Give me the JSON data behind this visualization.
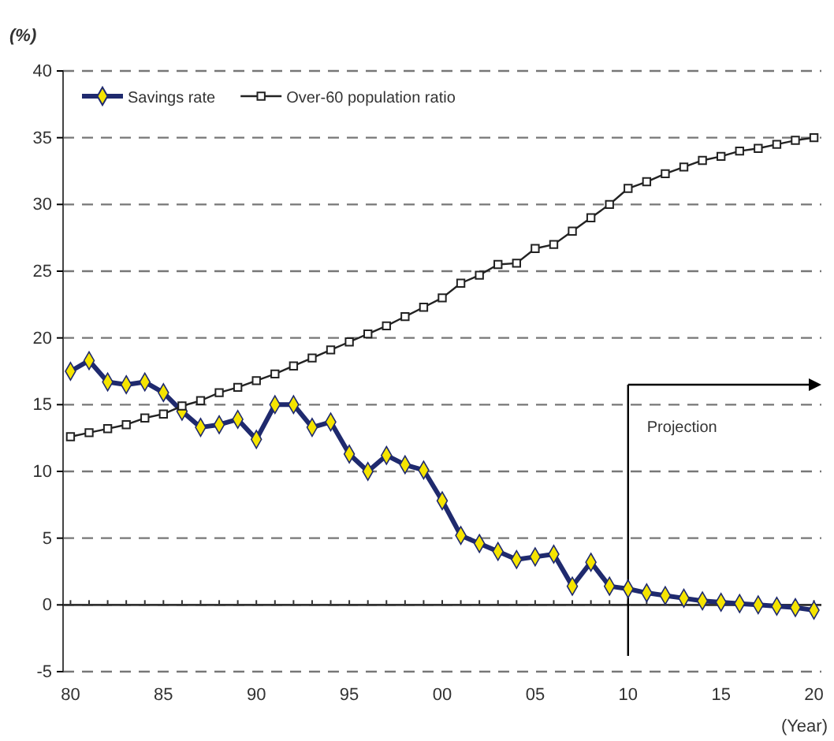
{
  "chart_data": {
    "type": "line",
    "ylabel": "(%)",
    "xlabel": "(Year)",
    "x": [
      1980,
      1981,
      1982,
      1983,
      1984,
      1985,
      1986,
      1987,
      1988,
      1989,
      1990,
      1991,
      1992,
      1993,
      1994,
      1995,
      1996,
      1997,
      1998,
      1999,
      2000,
      2001,
      2002,
      2003,
      2004,
      2005,
      2006,
      2007,
      2008,
      2009,
      2010,
      2011,
      2012,
      2013,
      2014,
      2015,
      2016,
      2017,
      2018,
      2019,
      2020
    ],
    "series": [
      {
        "name": "Savings rate",
        "color": "#1f2a6e",
        "marker": "diamond",
        "values": [
          17.5,
          18.3,
          16.7,
          16.5,
          16.7,
          15.9,
          14.5,
          13.3,
          13.5,
          13.9,
          12.4,
          15.0,
          15.0,
          13.3,
          13.7,
          11.3,
          10.0,
          11.2,
          10.5,
          10.1,
          7.8,
          5.2,
          4.6,
          4.0,
          3.4,
          3.6,
          3.8,
          1.4,
          3.2,
          1.4,
          1.2,
          0.9,
          0.7,
          0.5,
          0.3,
          0.2,
          0.1,
          0.0,
          -0.1,
          -0.2,
          -0.4
        ]
      },
      {
        "name": "Over-60 population ratio",
        "color": "#222222",
        "marker": "square",
        "values": [
          12.6,
          12.9,
          13.2,
          13.5,
          14.0,
          14.3,
          14.9,
          15.3,
          15.9,
          16.3,
          16.8,
          17.3,
          17.9,
          18.5,
          19.1,
          19.7,
          20.3,
          20.9,
          21.6,
          22.3,
          23.0,
          24.1,
          24.7,
          25.5,
          25.6,
          26.7,
          27.0,
          28.0,
          29.0,
          30.0,
          31.2,
          31.7,
          32.3,
          32.8,
          33.3,
          33.6,
          34.0,
          34.2,
          34.5,
          34.8,
          35.0
        ]
      }
    ],
    "xlim": [
      1979.6,
      2020.4
    ],
    "xticks": [
      {
        "value": 1980,
        "label": "80"
      },
      {
        "value": 1985,
        "label": "85"
      },
      {
        "value": 1990,
        "label": "90"
      },
      {
        "value": 1995,
        "label": "95"
      },
      {
        "value": 2000,
        "label": "00"
      },
      {
        "value": 2005,
        "label": "05"
      },
      {
        "value": 2010,
        "label": "10"
      },
      {
        "value": 2015,
        "label": "15"
      },
      {
        "value": 2020,
        "label": "20"
      }
    ],
    "ylim": [
      -5,
      40
    ],
    "yticks": [
      -5,
      0,
      5,
      10,
      15,
      20,
      25,
      30,
      35,
      40
    ],
    "grid": "y",
    "legend": "top left",
    "ref_lines": [
      {
        "axis": "x",
        "value": 2010,
        "label": "Projection",
        "color": "#000000"
      }
    ]
  }
}
